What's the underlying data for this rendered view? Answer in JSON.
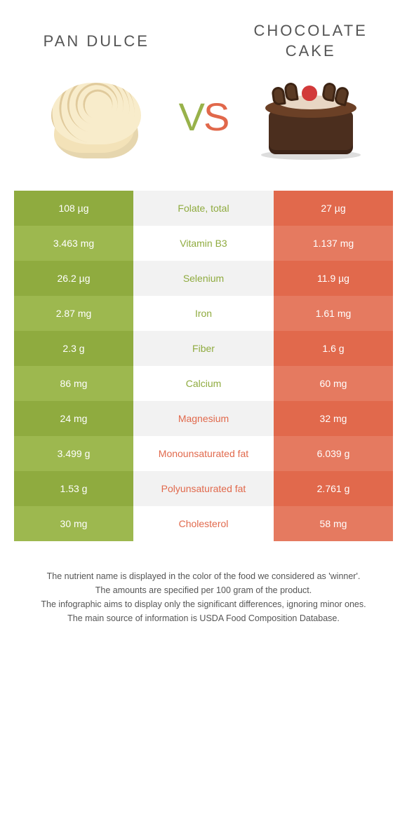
{
  "foods": {
    "left": {
      "name": "PAN DULCE",
      "color": "#8fab3f"
    },
    "right": {
      "name": "CHOCOLATE CAKE",
      "color": "#e1694c"
    }
  },
  "vs": {
    "v": "V",
    "s": "S"
  },
  "colors": {
    "left_odd": "#8fab3f",
    "left_even": "#9db84f",
    "right_odd": "#e1694c",
    "right_even": "#e57a60",
    "mid_odd": "#f2f2f2",
    "mid_even": "#ffffff"
  },
  "rows": [
    {
      "nutrient": "Folate, total",
      "left": "108 µg",
      "right": "27 µg",
      "winner": "left"
    },
    {
      "nutrient": "Vitamin B3",
      "left": "3.463 mg",
      "right": "1.137 mg",
      "winner": "left"
    },
    {
      "nutrient": "Selenium",
      "left": "26.2 µg",
      "right": "11.9 µg",
      "winner": "left"
    },
    {
      "nutrient": "Iron",
      "left": "2.87 mg",
      "right": "1.61 mg",
      "winner": "left"
    },
    {
      "nutrient": "Fiber",
      "left": "2.3 g",
      "right": "1.6 g",
      "winner": "left"
    },
    {
      "nutrient": "Calcium",
      "left": "86 mg",
      "right": "60 mg",
      "winner": "left"
    },
    {
      "nutrient": "Magnesium",
      "left": "24 mg",
      "right": "32 mg",
      "winner": "right"
    },
    {
      "nutrient": "Monounsaturated fat",
      "left": "3.499 g",
      "right": "6.039 g",
      "winner": "right"
    },
    {
      "nutrient": "Polyunsaturated fat",
      "left": "1.53 g",
      "right": "2.761 g",
      "winner": "right"
    },
    {
      "nutrient": "Cholesterol",
      "left": "30 mg",
      "right": "58 mg",
      "winner": "right"
    }
  ],
  "footer": [
    "The nutrient name is displayed in the color of the food we considered as 'winner'.",
    "The amounts are specified per 100 gram of the product.",
    "The infographic aims to display only the significant differences, ignoring minor ones.",
    "The main source of information is USDA Food Composition Database."
  ]
}
